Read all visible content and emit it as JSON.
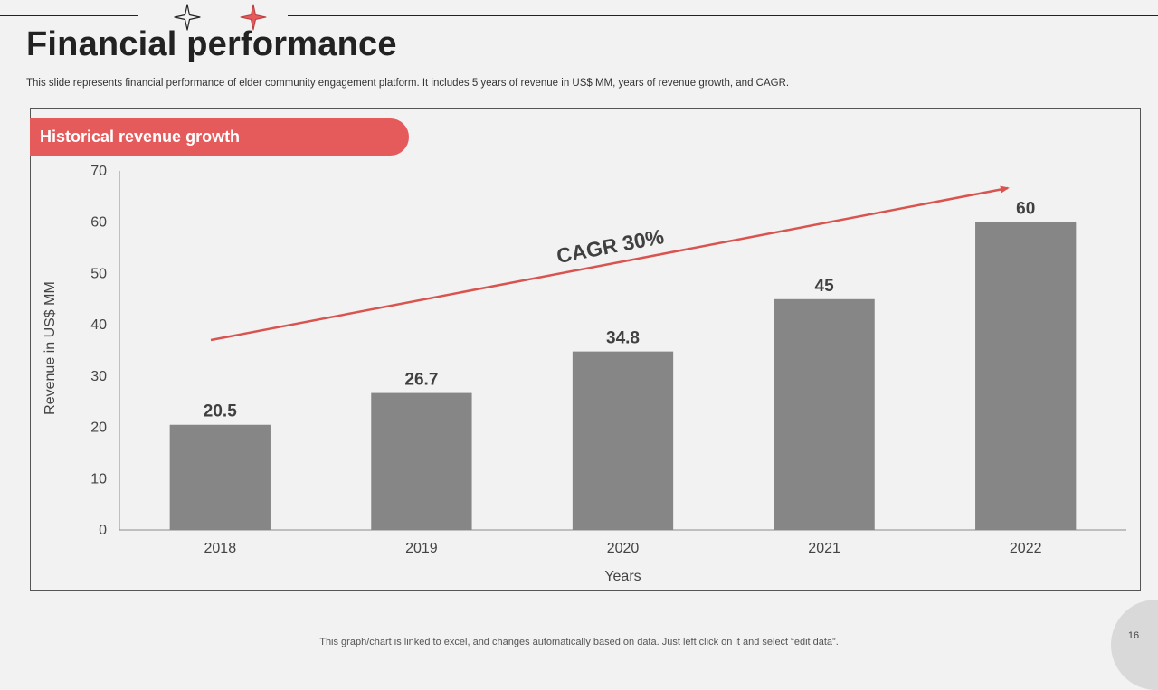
{
  "slide": {
    "title": "Financial performance",
    "subtitle": "This slide represents financial performance of elder community engagement platform. It includes 5 years of revenue in US$ MM,  years of revenue growth, and CAGR.",
    "section_label": "Historical revenue growth",
    "footer_note": "This graph/chart is linked to excel,  and changes automatically based on data. Just left click on it and select “edit data”.",
    "page_number": "16"
  },
  "decorations": {
    "star_outline": "four-point-star-outline-icon",
    "star_filled": "four-point-star-red-icon",
    "accent_color": "#e55a5a"
  },
  "chart_data": {
    "type": "bar",
    "categories": [
      "2018",
      "2019",
      "2020",
      "2021",
      "2022"
    ],
    "values": [
      20.5,
      26.7,
      34.8,
      45,
      60
    ],
    "value_labels": [
      "20.5",
      "26.7",
      "34.8",
      "45",
      "60"
    ],
    "xlabel": "Years",
    "ylabel": "Revenue  in US$ MM",
    "ylim": [
      0,
      70
    ],
    "yticks": [
      0,
      10,
      20,
      30,
      40,
      50,
      60,
      70
    ],
    "grid": false,
    "bar_color": "#868686",
    "annotation": {
      "text": "CAGR 30%",
      "color": "#d9534f"
    }
  }
}
